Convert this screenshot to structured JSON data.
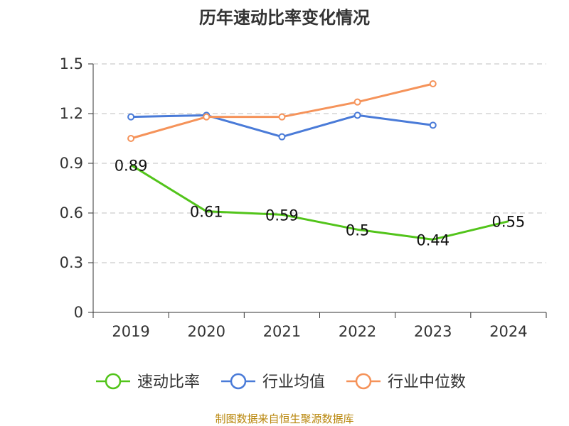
{
  "title": "历年速动比率变化情况",
  "source": "制图数据来自恒生聚源数据库",
  "colors": {
    "title": "#333333",
    "axis": "#333333",
    "grid": "#cccccc",
    "source": "#b8860b"
  },
  "chart_data": {
    "type": "line",
    "categories": [
      "2019",
      "2020",
      "2021",
      "2022",
      "2023",
      "2024"
    ],
    "ylim": [
      0,
      1.5
    ],
    "yticks": [
      "0",
      "0.3",
      "0.6",
      "0.9",
      "1.2",
      "1.5"
    ],
    "grid": true,
    "legend_position": "bottom",
    "series": [
      {
        "name": "速动比率",
        "color": "#52c41a",
        "values": [
          0.89,
          0.61,
          0.59,
          0.5,
          0.44,
          0.55
        ],
        "labels": [
          "0.89",
          "0.61",
          "0.59",
          "0.5",
          "0.44",
          "0.55"
        ],
        "show_markers": false
      },
      {
        "name": "行业均值",
        "color": "#4a7bd8",
        "values": [
          1.18,
          1.19,
          1.06,
          1.19,
          1.13,
          null
        ],
        "show_markers": true
      },
      {
        "name": "行业中位数",
        "color": "#f5935a",
        "values": [
          1.05,
          1.18,
          1.18,
          1.27,
          1.38,
          null
        ],
        "show_markers": true
      }
    ]
  }
}
